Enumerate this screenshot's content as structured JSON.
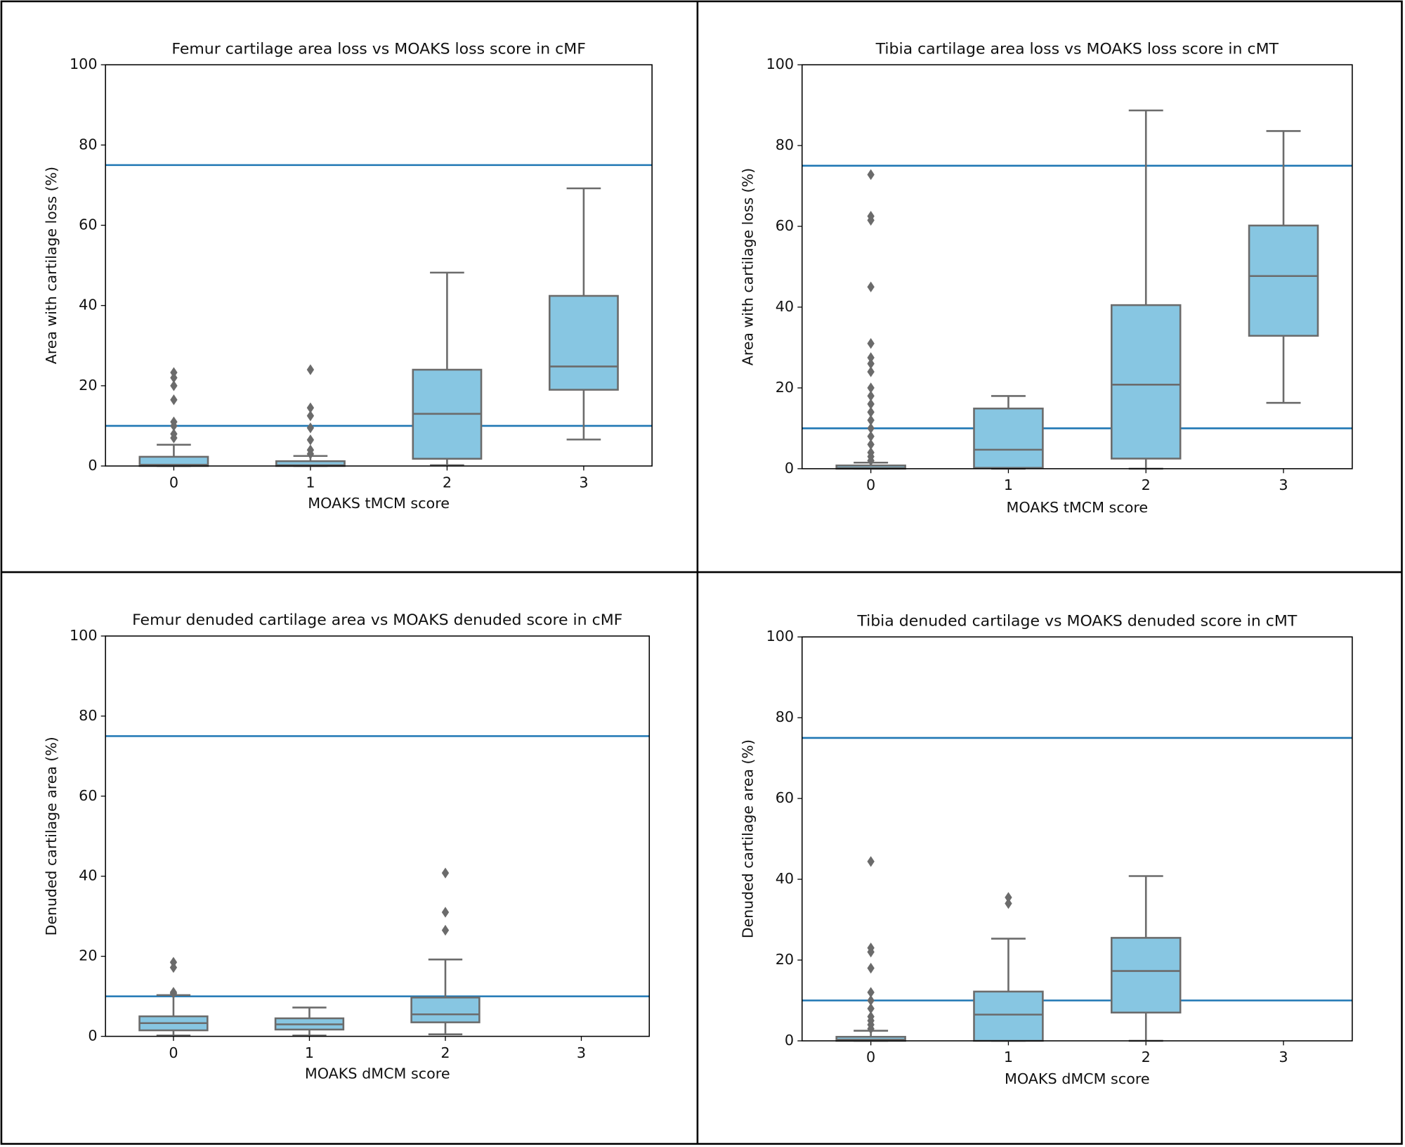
{
  "chart_data": [
    {
      "type": "box",
      "title": "Femur cartilage area loss vs MOAKS loss score in cMF",
      "x_label": "MOAKS tMCM score",
      "y_label": "Area with cartilage loss (%)",
      "categories": [
        "0",
        "1",
        "2",
        "3"
      ],
      "ylim": [
        0,
        100
      ],
      "yticks": [
        0,
        20,
        40,
        60,
        80,
        100
      ],
      "box_color": "#87c6e2",
      "line_color": "#6b6b6b",
      "hlines": [
        10,
        75
      ],
      "hline_color": "#1f77b4",
      "boxes": [
        {
          "whislo": 0,
          "q1": 0,
          "med": 0.3,
          "q3": 2.3,
          "whishi": 5.3,
          "fliers": [
            23.3,
            22,
            20,
            16.5,
            11,
            10,
            8,
            7
          ]
        },
        {
          "whislo": 0,
          "q1": 0,
          "med": 0.2,
          "q3": 1.2,
          "whishi": 2.5,
          "fliers": [
            24,
            14.5,
            12.5,
            9.5,
            6.5,
            4,
            3
          ]
        },
        {
          "whislo": 0.2,
          "q1": 1.8,
          "med": 13,
          "q3": 24,
          "whishi": 48.2,
          "fliers": []
        },
        {
          "whislo": 6.6,
          "q1": 19,
          "med": 24.8,
          "q3": 42.4,
          "whishi": 69.2,
          "fliers": []
        }
      ]
    },
    {
      "type": "box",
      "title": "Tibia cartilage area loss vs MOAKS loss score in cMT",
      "x_label": "MOAKS tMCM score",
      "y_label": "Area with cartilage loss (%)",
      "categories": [
        "0",
        "1",
        "2",
        "3"
      ],
      "ylim": [
        0,
        100
      ],
      "yticks": [
        0,
        20,
        40,
        60,
        80,
        100
      ],
      "box_color": "#87c6e2",
      "line_color": "#6b6b6b",
      "hlines": [
        10,
        75
      ],
      "hline_color": "#1f77b4",
      "boxes": [
        {
          "whislo": 0,
          "q1": 0,
          "med": 0.2,
          "q3": 0.8,
          "whishi": 1.5,
          "fliers": [
            72.8,
            62.5,
            61.5,
            45,
            31,
            27.5,
            26,
            24,
            20,
            18,
            16,
            14,
            12,
            10,
            8,
            6,
            4,
            3,
            2
          ]
        },
        {
          "whislo": 0,
          "q1": 0.2,
          "med": 4.7,
          "q3": 14.9,
          "whishi": 18,
          "fliers": []
        },
        {
          "whislo": 0,
          "q1": 2.5,
          "med": 20.8,
          "q3": 40.5,
          "whishi": 88.7,
          "fliers": []
        },
        {
          "whislo": 16.3,
          "q1": 32.9,
          "med": 47.7,
          "q3": 60.2,
          "whishi": 83.6,
          "fliers": []
        }
      ]
    },
    {
      "type": "box",
      "title": "Femur denuded cartilage area vs MOAKS denuded score in cMF",
      "x_label": "MOAKS dMCM score",
      "y_label": "Denuded cartilage area (%)",
      "categories": [
        "0",
        "1",
        "2",
        "3"
      ],
      "ylim": [
        0,
        100
      ],
      "yticks": [
        0,
        20,
        40,
        60,
        80,
        100
      ],
      "box_color": "#87c6e2",
      "line_color": "#6b6b6b",
      "hlines": [
        10,
        75
      ],
      "hline_color": "#1f77b4",
      "boxes": [
        {
          "whislo": 0.2,
          "q1": 1.5,
          "med": 3.3,
          "q3": 5,
          "whishi": 10.3,
          "fliers": [
            18.5,
            17.2,
            11,
            10.7
          ]
        },
        {
          "whislo": 0.2,
          "q1": 1.7,
          "med": 3,
          "q3": 4.5,
          "whishi": 7.2,
          "fliers": []
        },
        {
          "whislo": 0.5,
          "q1": 3.5,
          "med": 5.5,
          "q3": 9.7,
          "whishi": 19.2,
          "fliers": [
            40.8,
            31,
            26.5
          ]
        },
        null
      ]
    },
    {
      "type": "box",
      "title": "Tibia denuded cartilage vs MOAKS denuded score in cMT",
      "x_label": "MOAKS dMCM score",
      "y_label": "Denuded cartilage area (%)",
      "categories": [
        "0",
        "1",
        "2",
        "3"
      ],
      "ylim": [
        0,
        100
      ],
      "yticks": [
        0,
        20,
        40,
        60,
        80,
        100
      ],
      "box_color": "#87c6e2",
      "line_color": "#6b6b6b",
      "hlines": [
        10,
        75
      ],
      "hline_color": "#1f77b4",
      "boxes": [
        {
          "whislo": 0,
          "q1": 0,
          "med": 0.3,
          "q3": 1,
          "whishi": 2.5,
          "fliers": [
            44.4,
            23,
            22,
            18,
            12,
            10,
            8,
            6,
            5,
            4,
            3
          ]
        },
        {
          "whislo": 0,
          "q1": 0,
          "med": 6.5,
          "q3": 12.2,
          "whishi": 25.3,
          "fliers": [
            35.5,
            34
          ]
        },
        {
          "whislo": 0,
          "q1": 7,
          "med": 17.3,
          "q3": 25.5,
          "whishi": 40.8,
          "fliers": []
        },
        null
      ]
    }
  ]
}
